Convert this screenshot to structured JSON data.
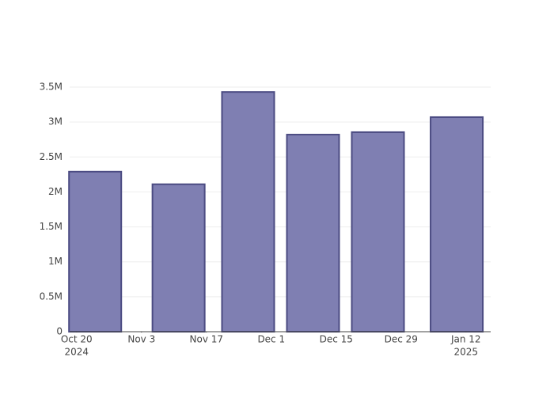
{
  "chart_data": {
    "type": "bar",
    "x": [
      "2024-10-24",
      "2024-11-11",
      "2024-11-26",
      "2024-12-10",
      "2024-12-24",
      "2025-01-10"
    ],
    "values": [
      2290000,
      2110000,
      3430000,
      2820000,
      2855000,
      3070000
    ],
    "color": "#7f7fb2",
    "edge_color": "#4b4b82",
    "xlim": [
      "2024-10-18T12:00",
      "2025-01-17T08:00"
    ],
    "xticks": [
      {
        "value": "2024-10-20",
        "label": [
          "Oct 20",
          "2024"
        ]
      },
      {
        "value": "2024-11-03",
        "label": [
          "Nov 3"
        ]
      },
      {
        "value": "2024-11-17",
        "label": [
          "Nov 17"
        ]
      },
      {
        "value": "2024-12-01",
        "label": [
          "Dec 1"
        ]
      },
      {
        "value": "2024-12-15",
        "label": [
          "Dec 15"
        ]
      },
      {
        "value": "2024-12-29",
        "label": [
          "Dec 29"
        ]
      },
      {
        "value": "2025-01-12",
        "label": [
          "Jan 12",
          "2025"
        ]
      }
    ],
    "ylim": [
      0,
      3500000
    ],
    "yticks": [
      0,
      {
        "value": 500000,
        "label": "0.5M"
      },
      {
        "value": 1000000,
        "label": "1M"
      },
      {
        "value": 1500000,
        "label": "1.5M"
      },
      {
        "value": 2000000,
        "label": "2M"
      },
      {
        "value": 2500000,
        "label": "2.5M"
      },
      {
        "value": 3000000,
        "label": "3M"
      },
      {
        "value": 3500000,
        "label": "3.5M"
      }
    ],
    "grid": true
  }
}
